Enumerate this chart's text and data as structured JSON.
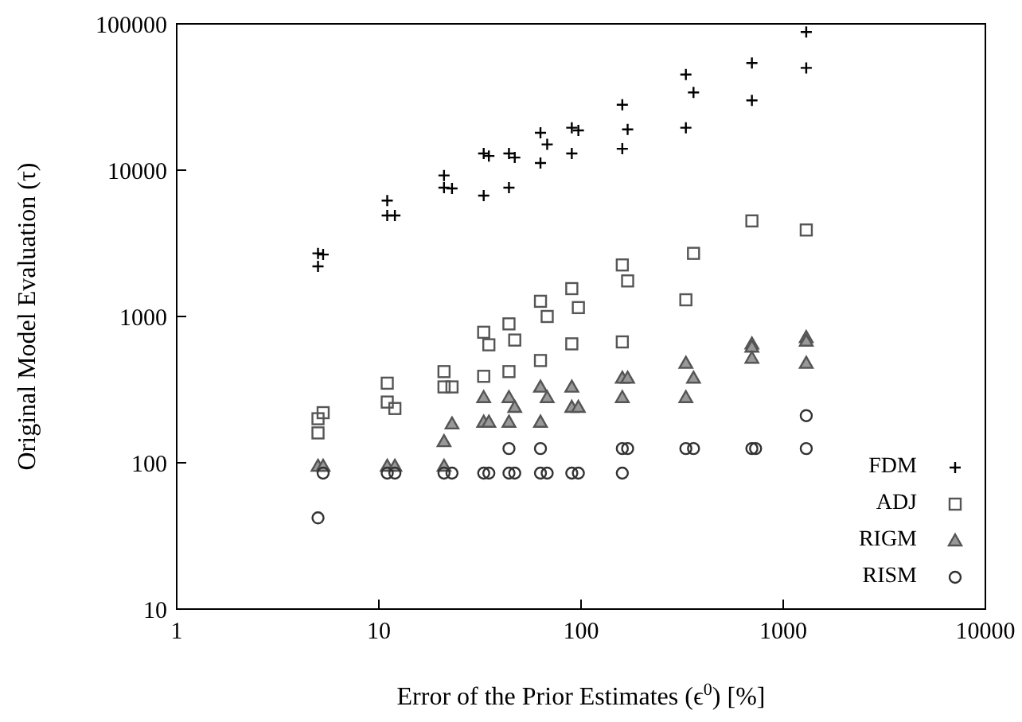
{
  "chart_data": {
    "type": "scatter",
    "xlabel": "Error of the Prior Estimates (ϵ$^{0}$) [%]",
    "ylabel": "Original Model Evaluation (τ)",
    "log": "xy",
    "xlim": [
      1,
      10000
    ],
    "ylim": [
      10,
      100000
    ],
    "xticks": [
      1,
      10,
      100,
      1000,
      10000
    ],
    "yticks": [
      10,
      100,
      1000,
      10000,
      100000
    ],
    "grid": false,
    "legend": "bottom right",
    "series": [
      {
        "name": "FDM",
        "color": "#000000",
        "marker": "cross",
        "x": [
          5,
          5.3,
          5,
          11,
          11,
          12,
          21,
          21,
          23,
          33,
          35,
          33,
          44,
          47,
          44,
          63,
          68,
          63,
          90,
          97,
          90,
          160,
          170,
          160,
          330,
          360,
          330,
          700,
          700,
          1300,
          1300
        ],
        "values": [
          2700,
          2650,
          2200,
          6200,
          4900,
          4900,
          9200,
          7600,
          7500,
          13000,
          12500,
          6700,
          13000,
          12200,
          7600,
          18000,
          15000,
          11200,
          19500,
          18700,
          13000,
          28000,
          19000,
          14000,
          45000,
          34000,
          19500,
          54000,
          30000,
          88000,
          50000
        ]
      },
      {
        "name": "ADJ",
        "color": "#555555",
        "marker": "square",
        "x": [
          5,
          5,
          5.3,
          11,
          11,
          12,
          21,
          21,
          23,
          33,
          35,
          33,
          44,
          47,
          44,
          63,
          68,
          63,
          90,
          97,
          90,
          160,
          170,
          160,
          360,
          330,
          700,
          1300
        ],
        "values": [
          200,
          160,
          220,
          350,
          260,
          235,
          420,
          330,
          330,
          780,
          640,
          390,
          890,
          690,
          420,
          1270,
          1000,
          500,
          1550,
          1150,
          650,
          2250,
          1750,
          670,
          2700,
          1300,
          4500,
          3900
        ]
      },
      {
        "name": "RIGM",
        "color": "#555555",
        "marker": "triangle",
        "x": [
          5,
          5.3,
          11,
          12,
          21,
          23,
          21,
          33,
          35,
          33,
          44,
          44,
          47,
          63,
          63,
          68,
          90,
          97,
          90,
          160,
          170,
          160,
          330,
          360,
          330,
          700,
          700,
          700,
          1300,
          1300,
          1300
        ],
        "values": [
          95,
          95,
          95,
          95,
          95,
          185,
          140,
          190,
          190,
          280,
          280,
          190,
          240,
          330,
          190,
          280,
          240,
          240,
          330,
          380,
          380,
          280,
          480,
          380,
          280,
          650,
          620,
          520,
          720,
          680,
          480
        ]
      },
      {
        "name": "RISM",
        "color": "#333333",
        "marker": "circle",
        "x": [
          5,
          5.3,
          11,
          12,
          21,
          23,
          33,
          35,
          44,
          47,
          44,
          63,
          68,
          63,
          90,
          97,
          160,
          170,
          160,
          330,
          360,
          700,
          730,
          1300,
          1300
        ],
        "values": [
          42,
          85,
          85,
          85,
          85,
          85,
          85,
          85,
          85,
          85,
          125,
          85,
          85,
          125,
          85,
          85,
          125,
          125,
          85,
          125,
          125,
          125,
          125,
          210,
          125
        ]
      }
    ]
  }
}
